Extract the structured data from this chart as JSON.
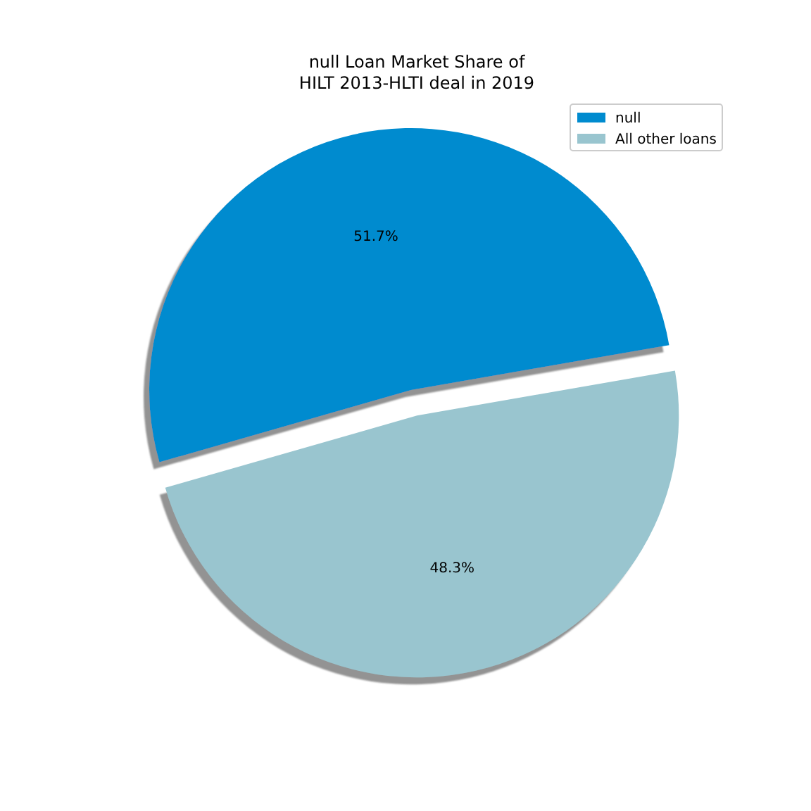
{
  "chart_data": {
    "type": "pie",
    "title": "null Loan Market Share of\nHILT 2013-HLTI deal in 2019",
    "categories": [
      "null",
      "All other loans"
    ],
    "values": [
      51.7,
      48.3
    ],
    "colors": [
      "#008bcf",
      "#99c5cf"
    ],
    "value_labels": [
      "51.7%",
      "48.3%"
    ],
    "legend": "top right"
  }
}
